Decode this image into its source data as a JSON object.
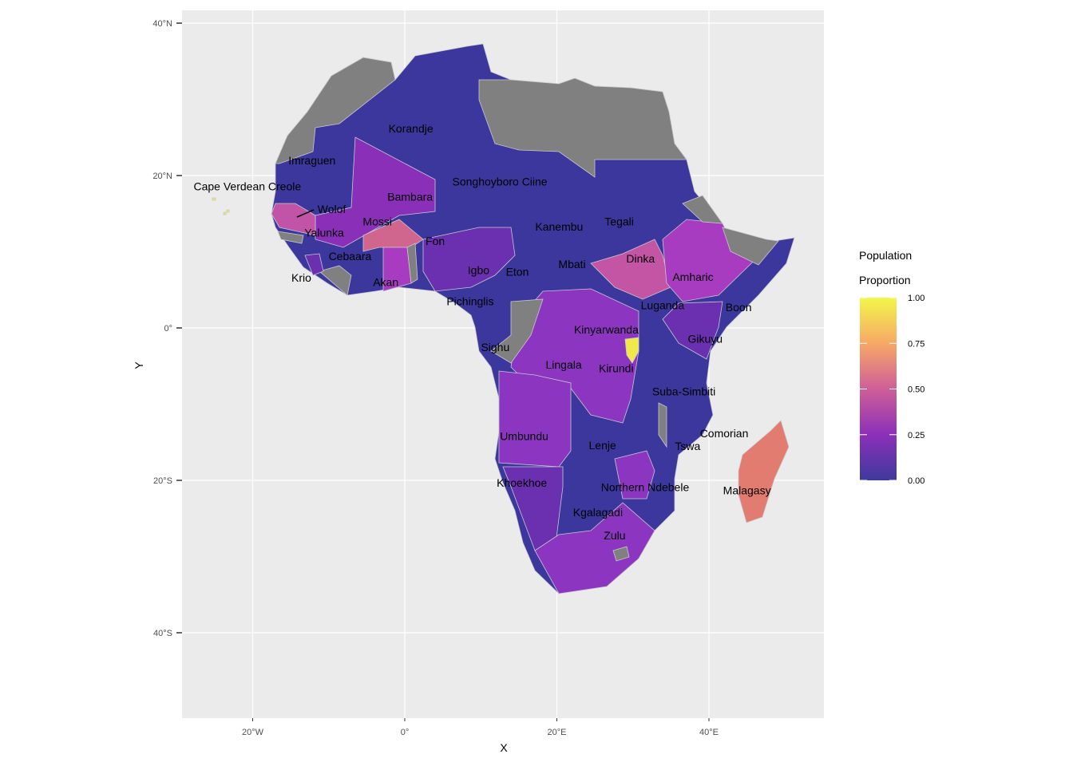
{
  "chart_data": {
    "type": "choropleth-map",
    "xlabel": "X",
    "ylabel": "Y",
    "x_ticks": [
      {
        "value": -20,
        "label": "20°W"
      },
      {
        "value": 0,
        "label": "0°"
      },
      {
        "value": 20,
        "label": "20°E"
      },
      {
        "value": 40,
        "label": "40°E"
      }
    ],
    "y_ticks": [
      {
        "value": 40,
        "label": "40°N"
      },
      {
        "value": 20,
        "label": "20°N"
      },
      {
        "value": 0,
        "label": "0°"
      },
      {
        "value": -20,
        "label": "20°S"
      },
      {
        "value": -40,
        "label": "40°S"
      }
    ],
    "legend": {
      "title_line1": "Population",
      "title_line2": "Proportion",
      "position": "right",
      "range": [
        0,
        1
      ],
      "breaks": [
        {
          "value": 1.0,
          "label": "1.00"
        },
        {
          "value": 0.75,
          "label": "0.75"
        },
        {
          "value": 0.5,
          "label": "0.50"
        },
        {
          "value": 0.25,
          "label": "0.25"
        },
        {
          "value": 0.0,
          "label": "0.00"
        }
      ],
      "colors": [
        "#0d0887",
        "#7e03a8",
        "#cc4778",
        "#f89540",
        "#f0f921"
      ]
    },
    "missing_color": "#808080",
    "labels": [
      {
        "text": "Korandje",
        "lon": 0.8,
        "lat": 26.2
      },
      {
        "text": "Imraguen",
        "lon": -12.2,
        "lat": 22.0
      },
      {
        "text": "Cape Verdean Creole",
        "lon": -20.7,
        "lat": 18.6
      },
      {
        "text": "Bambara",
        "lon": 0.7,
        "lat": 17.2
      },
      {
        "text": "Songhoyboro Ciine",
        "lon": 12.5,
        "lat": 19.2
      },
      {
        "text": "Wolof",
        "lon": -9.6,
        "lat": 15.6
      },
      {
        "text": "Mossi",
        "lon": -3.6,
        "lat": 14.0
      },
      {
        "text": "Yalunka",
        "lon": -10.6,
        "lat": 12.5
      },
      {
        "text": "Fon",
        "lon": 4.0,
        "lat": 11.4
      },
      {
        "text": "Kanembu",
        "lon": 20.3,
        "lat": 13.3
      },
      {
        "text": "Tegali",
        "lon": 28.2,
        "lat": 14.0
      },
      {
        "text": "Cebaara",
        "lon": -7.2,
        "lat": 9.4
      },
      {
        "text": "Igbo",
        "lon": 9.7,
        "lat": 7.6
      },
      {
        "text": "Eton",
        "lon": 14.8,
        "lat": 7.4
      },
      {
        "text": "Mbati",
        "lon": 22.0,
        "lat": 8.4
      },
      {
        "text": "Dinka",
        "lon": 31.0,
        "lat": 9.1
      },
      {
        "text": "Amharic",
        "lon": 37.9,
        "lat": 6.7
      },
      {
        "text": "Krio",
        "lon": -13.6,
        "lat": 6.6
      },
      {
        "text": "Akan",
        "lon": -2.5,
        "lat": 6.0
      },
      {
        "text": "Pichinglis",
        "lon": 8.6,
        "lat": 3.5
      },
      {
        "text": "Luganda",
        "lon": 33.9,
        "lat": 3.0
      },
      {
        "text": "Boon",
        "lon": 43.9,
        "lat": 2.7
      },
      {
        "text": "Kinyarwanda",
        "lon": 26.5,
        "lat": -0.2
      },
      {
        "text": "Gikuyu",
        "lon": 39.5,
        "lat": -1.4
      },
      {
        "text": "Sighu",
        "lon": 11.9,
        "lat": -2.5
      },
      {
        "text": "Lingala",
        "lon": 20.9,
        "lat": -4.8
      },
      {
        "text": "Kirundi",
        "lon": 27.8,
        "lat": -5.3
      },
      {
        "text": "Suba-Simbiti",
        "lon": 36.7,
        "lat": -8.3
      },
      {
        "text": "Umbundu",
        "lon": 15.7,
        "lat": -14.2
      },
      {
        "text": "Comorian",
        "lon": 42.0,
        "lat": -13.8
      },
      {
        "text": "Lenje",
        "lon": 26.0,
        "lat": -15.4
      },
      {
        "text": "Tswa",
        "lon": 37.2,
        "lat": -15.5
      },
      {
        "text": "Khoekhoe",
        "lon": 15.4,
        "lat": -20.3
      },
      {
        "text": "Northern Ndebele",
        "lon": 31.6,
        "lat": -20.9
      },
      {
        "text": "Malagasy",
        "lon": 45.0,
        "lat": -21.3
      },
      {
        "text": "Kgalagadi",
        "lon": 25.4,
        "lat": -24.2
      },
      {
        "text": "Zulu",
        "lon": 27.6,
        "lat": -27.2
      }
    ]
  }
}
